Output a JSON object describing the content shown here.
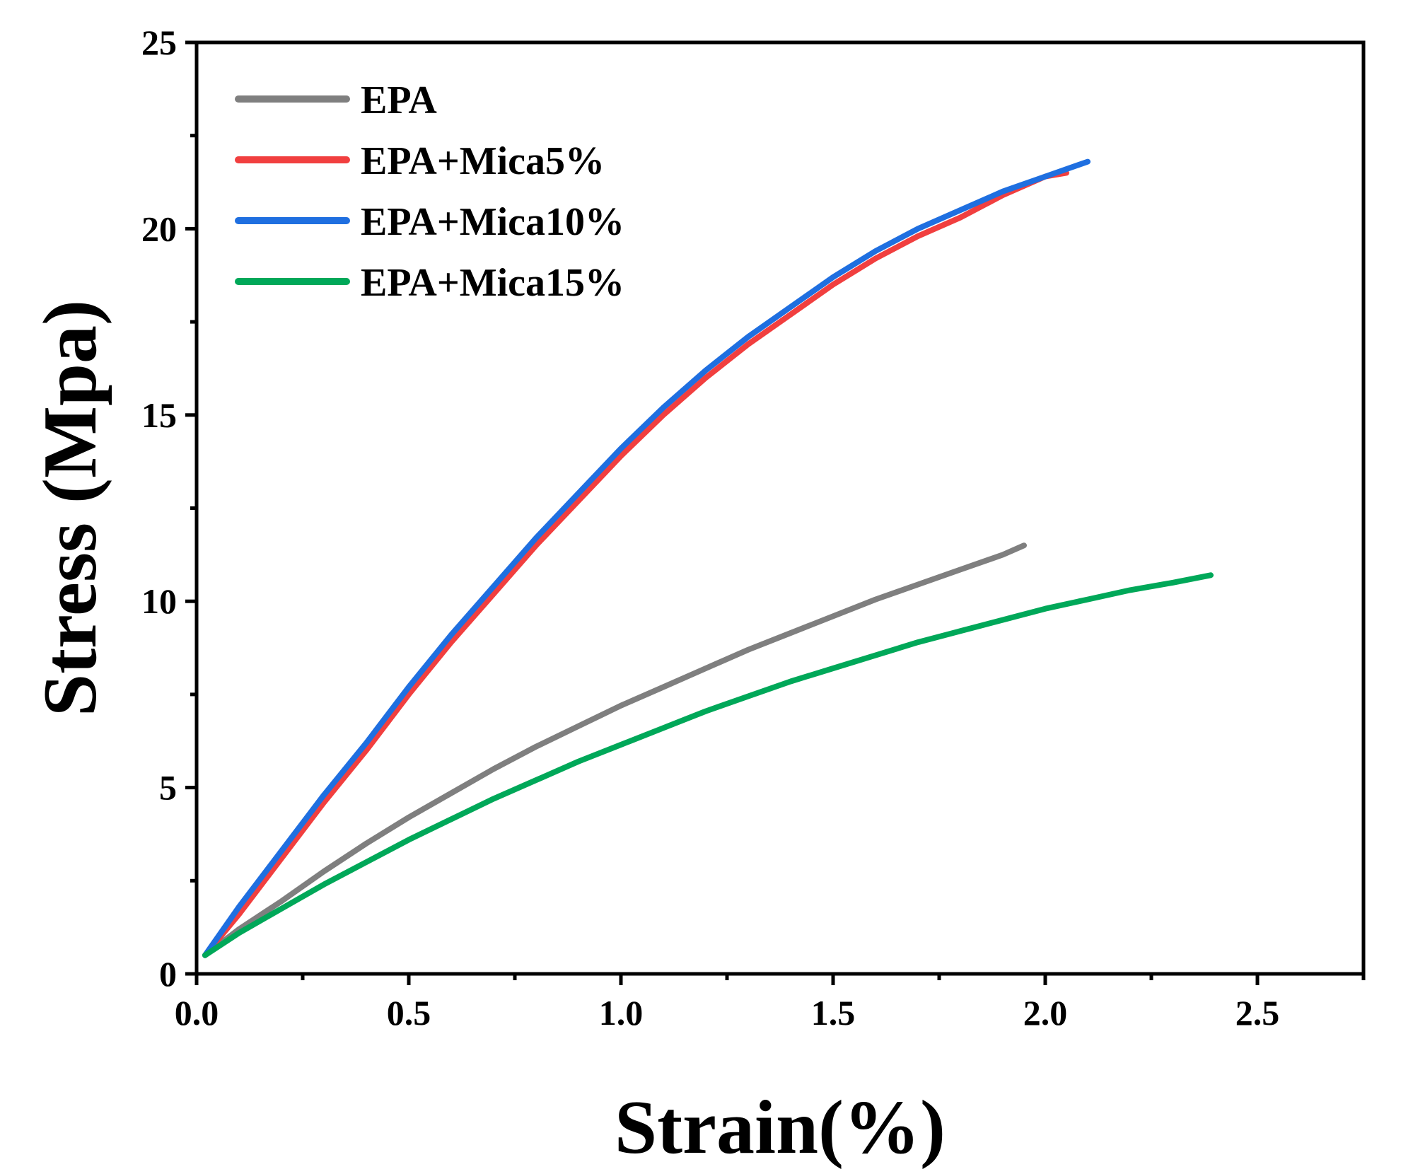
{
  "chart_data": {
    "type": "line",
    "title": "",
    "xlabel": "Strain(%)",
    "ylabel": "Stress (Mpa)",
    "xlim": [
      0,
      2.75
    ],
    "ylim": [
      0,
      25
    ],
    "xticks": [
      0.0,
      0.5,
      1.0,
      1.5,
      2.0,
      2.5
    ],
    "xtick_labels": [
      "0.0",
      "0.5",
      "1.0",
      "1.5",
      "2.0",
      "2.5"
    ],
    "yticks": [
      0,
      5,
      10,
      15,
      20,
      25
    ],
    "ytick_labels": [
      "0",
      "5",
      "10",
      "15",
      "20",
      "25"
    ],
    "grid": false,
    "legend_position": "top-left",
    "series": [
      {
        "name": "EPA",
        "color": "#7f7f7f",
        "x": [
          0.02,
          0.1,
          0.2,
          0.3,
          0.4,
          0.5,
          0.6,
          0.7,
          0.8,
          0.9,
          1.0,
          1.1,
          1.2,
          1.3,
          1.4,
          1.5,
          1.6,
          1.7,
          1.8,
          1.9,
          1.95
        ],
        "y": [
          0.5,
          1.2,
          1.95,
          2.75,
          3.5,
          4.2,
          4.85,
          5.5,
          6.1,
          6.65,
          7.2,
          7.7,
          8.2,
          8.7,
          9.15,
          9.6,
          10.05,
          10.45,
          10.85,
          11.25,
          11.5
        ]
      },
      {
        "name": "EPA+Mica5%",
        "color": "#f13f3f",
        "x": [
          0.02,
          0.1,
          0.2,
          0.3,
          0.4,
          0.5,
          0.6,
          0.7,
          0.8,
          0.9,
          1.0,
          1.1,
          1.2,
          1.3,
          1.4,
          1.5,
          1.6,
          1.7,
          1.8,
          1.9,
          2.0,
          2.05
        ],
        "y": [
          0.5,
          1.6,
          3.1,
          4.6,
          6.0,
          7.5,
          8.9,
          10.2,
          11.5,
          12.7,
          13.9,
          15.0,
          16.0,
          16.9,
          17.7,
          18.5,
          19.2,
          19.8,
          20.3,
          20.9,
          21.4,
          21.5
        ]
      },
      {
        "name": "EPA+Mica10%",
        "color": "#1f6fe0",
        "x": [
          0.02,
          0.1,
          0.2,
          0.3,
          0.4,
          0.5,
          0.6,
          0.7,
          0.8,
          0.9,
          1.0,
          1.1,
          1.2,
          1.3,
          1.4,
          1.5,
          1.6,
          1.7,
          1.8,
          1.9,
          2.0,
          2.1
        ],
        "y": [
          0.5,
          1.8,
          3.3,
          4.8,
          6.2,
          7.7,
          9.1,
          10.4,
          11.7,
          12.9,
          14.1,
          15.2,
          16.2,
          17.1,
          17.9,
          18.7,
          19.4,
          20.0,
          20.5,
          21.0,
          21.4,
          21.8
        ]
      },
      {
        "name": "EPA+Mica15%",
        "color": "#00a859",
        "x": [
          0.02,
          0.1,
          0.2,
          0.3,
          0.4,
          0.5,
          0.6,
          0.7,
          0.8,
          0.9,
          1.0,
          1.1,
          1.2,
          1.3,
          1.4,
          1.5,
          1.6,
          1.7,
          1.8,
          1.9,
          2.0,
          2.1,
          2.2,
          2.3,
          2.39
        ],
        "y": [
          0.5,
          1.1,
          1.75,
          2.4,
          3.0,
          3.6,
          4.15,
          4.7,
          5.2,
          5.7,
          6.15,
          6.6,
          7.05,
          7.45,
          7.85,
          8.2,
          8.55,
          8.9,
          9.2,
          9.5,
          9.8,
          10.05,
          10.3,
          10.5,
          10.7
        ]
      }
    ]
  }
}
